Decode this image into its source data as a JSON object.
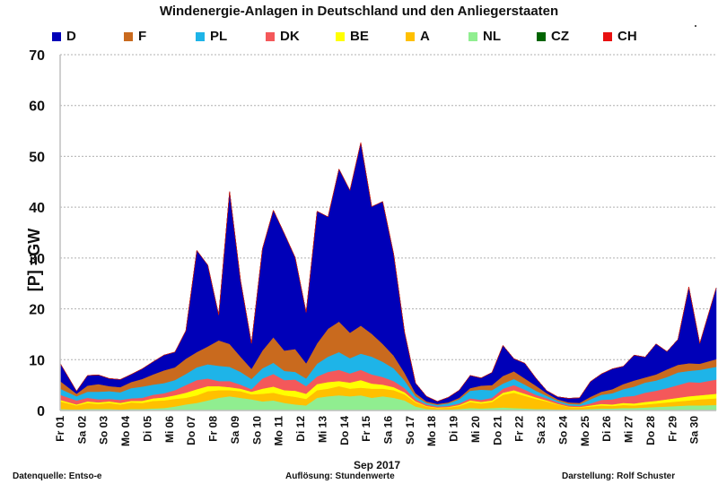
{
  "chart_data": {
    "type": "area",
    "stacked": true,
    "title": "Windenergie-Anlagen in Deutschland und den Anliegerstaaten",
    "ylabel": "[P] =GW",
    "xlabel": "Sep 2017",
    "ylim": [
      0,
      70
    ],
    "yticks": [
      0,
      10,
      20,
      30,
      40,
      50,
      60,
      70
    ],
    "grid": true,
    "legend_position": "top",
    "resolution_days": 0.5,
    "x_start_day": 0,
    "x_end_day": 30,
    "categories": [
      "Fr 01",
      "Sa 02",
      "So 03",
      "Mo 04",
      "Di 05",
      "Mi 06",
      "Do 07",
      "Fr 08",
      "Sa 09",
      "So 10",
      "Mo 11",
      "Di 12",
      "Mi 13",
      "Do 14",
      "Fr 15",
      "Sa 16",
      "So 17",
      "Mo 18",
      "Di 19",
      "Mi 20",
      "Do 21",
      "Fr 22",
      "Sa 23",
      "So 24",
      "Mo 25",
      "Di 26",
      "Mi 27",
      "Do 28",
      "Fr 29",
      "Sa 30"
    ],
    "series": [
      {
        "name": "NL",
        "color": "#90EE90",
        "values": [
          0.3,
          0.2,
          0.3,
          0.3,
          0.3,
          0.2,
          0.3,
          0.3,
          0.4,
          0.5,
          0.8,
          1.2,
          1.5,
          2.0,
          2.5,
          2.8,
          2.5,
          2.2,
          1.8,
          2.0,
          1.5,
          1.2,
          1.0,
          2.5,
          2.8,
          3.0,
          2.8,
          3.0,
          2.5,
          2.8,
          2.5,
          2.0,
          0.8,
          0.3,
          0.2,
          0.2,
          0.3,
          0.5,
          0.4,
          0.5,
          0.6,
          0.5,
          0.4,
          0.3,
          0.3,
          0.2,
          0.2,
          0.2,
          0.3,
          0.4,
          0.4,
          0.5,
          0.5,
          0.6,
          0.7,
          0.8,
          0.9,
          1.0,
          1.0,
          1.1
        ]
      },
      {
        "name": "A",
        "color": "#FFC000",
        "values": [
          1.5,
          0.8,
          1.2,
          1.0,
          1.2,
          1.0,
          1.3,
          1.2,
          1.5,
          1.5,
          1.5,
          1.3,
          1.5,
          1.8,
          1.5,
          1.2,
          1.3,
          1.0,
          1.5,
          1.5,
          1.5,
          1.5,
          1.3,
          1.5,
          1.5,
          1.8,
          1.5,
          1.5,
          1.8,
          1.5,
          1.5,
          1.2,
          0.8,
          0.5,
          0.3,
          0.4,
          0.6,
          1.2,
          1.0,
          1.2,
          2.5,
          3.0,
          2.5,
          2.0,
          1.5,
          1.0,
          0.5,
          0.4,
          0.5,
          0.6,
          0.5,
          0.6,
          0.5,
          0.6,
          0.7,
          0.8,
          0.9,
          1.0,
          1.2,
          1.3
        ]
      },
      {
        "name": "BE",
        "color": "#FFFF00",
        "values": [
          0.3,
          0.2,
          0.3,
          0.3,
          0.3,
          0.3,
          0.3,
          0.4,
          0.5,
          0.6,
          0.7,
          1.0,
          1.2,
          1.0,
          0.8,
          0.6,
          0.5,
          0.5,
          1.0,
          1.2,
          1.0,
          1.2,
          1.0,
          1.2,
          1.3,
          1.0,
          1.2,
          1.5,
          1.0,
          0.8,
          0.6,
          0.4,
          0.2,
          0.1,
          0.1,
          0.1,
          0.2,
          0.3,
          0.3,
          0.3,
          0.4,
          0.5,
          0.4,
          0.3,
          0.2,
          0.1,
          0.1,
          0.1,
          0.2,
          0.3,
          0.3,
          0.4,
          0.4,
          0.5,
          0.5,
          0.6,
          0.7,
          0.8,
          0.8,
          0.9
        ]
      },
      {
        "name": "DK",
        "color": "#F4585A",
        "values": [
          1.0,
          0.8,
          0.7,
          0.6,
          0.5,
          0.6,
          0.5,
          0.6,
          0.7,
          0.8,
          1.0,
          1.5,
          1.8,
          1.5,
          1.0,
          1.2,
          0.8,
          0.5,
          2.0,
          2.5,
          2.0,
          2.2,
          1.5,
          1.5,
          2.0,
          2.2,
          1.8,
          2.0,
          1.8,
          1.5,
          1.2,
          0.8,
          0.4,
          0.3,
          0.2,
          0.2,
          0.3,
          0.4,
          0.4,
          0.5,
          0.8,
          1.0,
          0.8,
          0.5,
          0.4,
          0.3,
          0.2,
          0.2,
          0.4,
          0.8,
          1.0,
          1.2,
          1.5,
          1.8,
          2.0,
          2.2,
          2.5,
          2.8,
          2.5,
          2.8
        ]
      },
      {
        "name": "PL",
        "color": "#1EB4E8",
        "values": [
          1.2,
          0.8,
          1.2,
          1.5,
          1.5,
          1.5,
          2.0,
          2.2,
          2.0,
          2.0,
          2.0,
          2.2,
          2.5,
          2.8,
          3.0,
          2.8,
          2.5,
          2.0,
          2.0,
          2.2,
          1.8,
          1.5,
          1.5,
          2.5,
          3.0,
          3.5,
          3.0,
          3.2,
          3.5,
          3.0,
          2.5,
          1.5,
          0.6,
          0.3,
          0.3,
          0.5,
          0.8,
          1.5,
          2.0,
          1.5,
          1.0,
          1.2,
          1.0,
          0.8,
          0.5,
          0.3,
          0.3,
          0.3,
          0.8,
          1.0,
          1.2,
          1.5,
          1.8,
          2.0,
          2.0,
          2.2,
          2.5,
          2.2,
          2.5,
          2.5
        ]
      },
      {
        "name": "F",
        "color": "#C96A1E",
        "values": [
          1.5,
          0.5,
          1.2,
          1.5,
          1.0,
          1.0,
          1.2,
          1.5,
          2.0,
          2.5,
          2.5,
          3.0,
          3.0,
          3.5,
          5.0,
          4.5,
          3.0,
          2.0,
          3.5,
          5.0,
          4.0,
          4.5,
          3.0,
          4.0,
          5.5,
          6.0,
          5.0,
          5.5,
          4.5,
          3.5,
          2.5,
          1.5,
          0.6,
          0.3,
          0.2,
          0.2,
          0.3,
          0.5,
          0.8,
          1.0,
          1.5,
          1.5,
          1.2,
          1.0,
          0.5,
          0.3,
          0.3,
          0.3,
          0.5,
          0.6,
          0.8,
          1.0,
          1.2,
          1.0,
          1.2,
          1.5,
          1.5,
          1.5,
          1.2,
          1.5
        ]
      },
      {
        "name": "D",
        "color": "#0000B8",
        "values": [
          3.5,
          0.5,
          2.0,
          1.8,
          1.5,
          1.5,
          1.5,
          2.0,
          2.5,
          3.0,
          3.0,
          5.5,
          20.0,
          16.0,
          5.0,
          30.0,
          15.0,
          5.0,
          20.0,
          25.0,
          23.0,
          18.0,
          10.0,
          26.0,
          22.0,
          30.0,
          28.0,
          36.0,
          25.0,
          28.0,
          20.0,
          8.0,
          2.0,
          1.0,
          0.5,
          1.0,
          1.5,
          2.5,
          1.5,
          2.5,
          6.0,
          2.5,
          3.0,
          1.5,
          0.5,
          0.5,
          0.8,
          1.0,
          3.0,
          3.5,
          4.0,
          3.5,
          5.0,
          4.0,
          6.0,
          3.5,
          5.0,
          15.0,
          4.0,
          14.0
        ]
      },
      {
        "name": "CZ",
        "color": "#006400",
        "values": [
          0,
          0,
          0,
          0,
          0,
          0,
          0,
          0,
          0,
          0,
          0,
          0,
          0,
          0,
          0,
          0,
          0,
          0,
          0,
          0,
          0,
          0,
          0,
          0,
          0,
          0,
          0,
          0,
          0,
          0,
          0,
          0,
          0,
          0,
          0,
          0,
          0,
          0,
          0,
          0,
          0,
          0,
          0,
          0,
          0,
          0,
          0,
          0,
          0,
          0,
          0,
          0,
          0,
          0,
          0,
          0,
          0,
          0,
          0,
          0
        ]
      },
      {
        "name": "CH",
        "color": "#E81010",
        "values": [
          0,
          0,
          0,
          0,
          0,
          0,
          0,
          0,
          0,
          0,
          0,
          0,
          0,
          0,
          0,
          0,
          0,
          0,
          0,
          0,
          0,
          0,
          0,
          0,
          0,
          0,
          0,
          0,
          0,
          0,
          0,
          0,
          0,
          0,
          0,
          0,
          0,
          0,
          0,
          0,
          0,
          0,
          0,
          0,
          0,
          0,
          0,
          0,
          0,
          0,
          0,
          0,
          0,
          0,
          0,
          0,
          0,
          0,
          0,
          0
        ]
      }
    ],
    "legend_order": [
      "D",
      "F",
      "PL",
      "DK",
      "BE",
      "A",
      "NL",
      "CZ",
      "CH"
    ]
  },
  "footer": {
    "source": "Datenquelle: Entso-e",
    "resolution": "Auflösung:  Stundenwerte",
    "author": "Darstellung: Rolf Schuster",
    "period": "Sep 2017"
  }
}
